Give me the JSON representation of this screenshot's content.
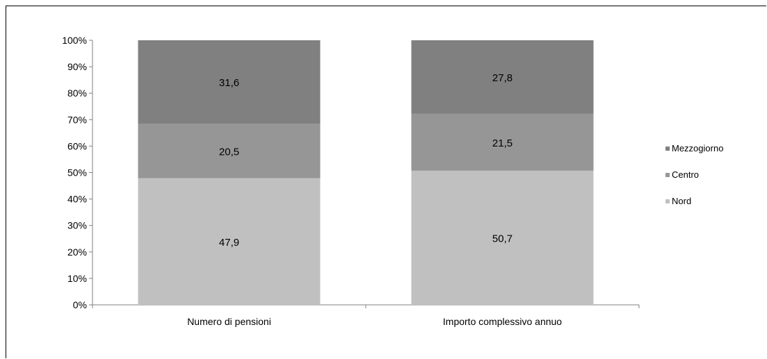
{
  "chart_data": {
    "type": "bar",
    "stacked": true,
    "percent_stacked": true,
    "categories": [
      "Numero di pensioni",
      "Importo complessivo annuo"
    ],
    "series": [
      {
        "name": "Nord",
        "values": [
          47.9,
          50.7
        ],
        "labels": [
          "47,9",
          "50,7"
        ],
        "color": "#c0c0c0"
      },
      {
        "name": "Centro",
        "values": [
          20.5,
          21.5
        ],
        "labels": [
          "20,5",
          "21,5"
        ],
        "color": "#969696"
      },
      {
        "name": "Mezzogiorno",
        "values": [
          31.6,
          27.8
        ],
        "labels": [
          "31,6",
          "27,8"
        ],
        "color": "#808080"
      }
    ],
    "y_ticks": [
      "0%",
      "10%",
      "20%",
      "30%",
      "40%",
      "50%",
      "60%",
      "70%",
      "80%",
      "90%",
      "100%"
    ],
    "ylim": [
      0,
      100
    ],
    "grid": false,
    "legend_position": "right",
    "legend_order": [
      "Mezzogiorno",
      "Centro",
      "Nord"
    ]
  }
}
